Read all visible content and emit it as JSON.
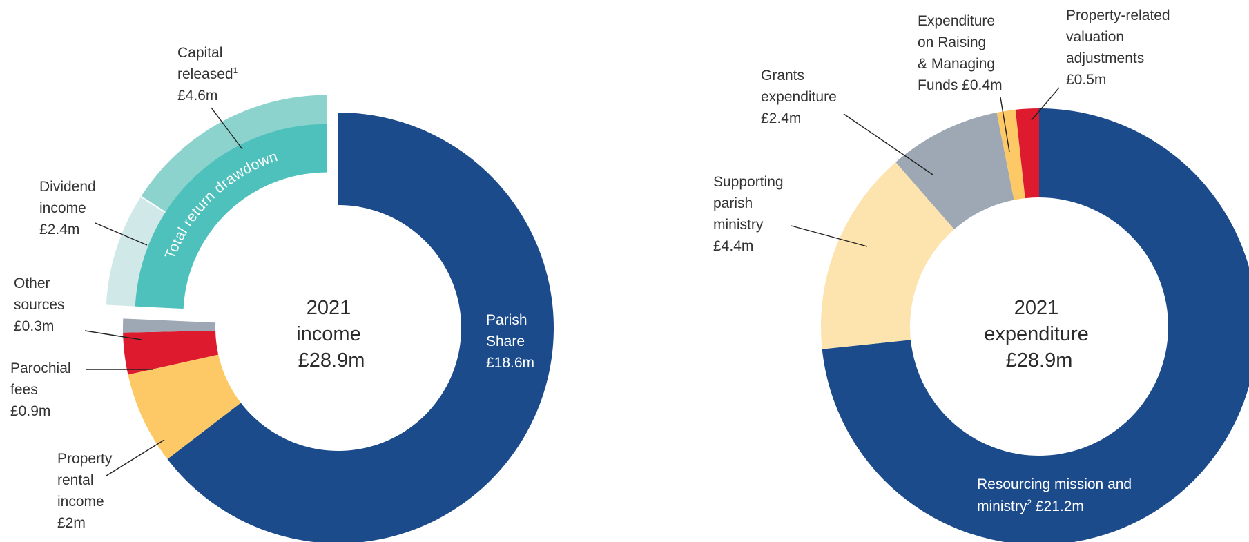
{
  "chart_data": [
    {
      "type": "pie",
      "title": "",
      "center_label": [
        "2021",
        "income",
        "£28.9m"
      ],
      "slices": [
        {
          "name": "Parish Share",
          "label": [
            "Parish",
            "Share",
            "£18.6m"
          ],
          "value": 18.6,
          "color": "#1c4b8c"
        },
        {
          "name": "Property rental income",
          "label": [
            "Property",
            "rental",
            "income",
            "£2m"
          ],
          "value": 2.0,
          "color": "#fdc966"
        },
        {
          "name": "Parochial fees",
          "label": [
            "Parochial",
            "fees",
            "£0.9m"
          ],
          "value": 0.9,
          "color": "#de1a2e"
        },
        {
          "name": "Other sources",
          "label": [
            "Other",
            "sources",
            "£0.3m"
          ],
          "value": 0.3,
          "color": "#9ea7b4"
        },
        {
          "name": "Dividend income",
          "label": [
            "Dividend",
            "income",
            "£2.4m"
          ],
          "value": 2.4,
          "color": "#d0e8e8"
        },
        {
          "name": "Capital released",
          "label": [
            "Capital",
            "released",
            "£4.6m"
          ],
          "footnote": "1",
          "value": 4.6,
          "color": "#8dd3cd"
        }
      ],
      "group_label": {
        "text": "Total return drawdown",
        "color": "#4fc1bc"
      }
    },
    {
      "type": "pie",
      "title": "",
      "center_label": [
        "2021",
        "expenditure",
        "£28.9m"
      ],
      "slices": [
        {
          "name": "Resourcing mission and ministry",
          "label": [
            "Resourcing mission and",
            "ministry £21.2m"
          ],
          "footnote": "2",
          "value": 21.2,
          "color": "#1c4b8c"
        },
        {
          "name": "Supporting parish ministry",
          "label": [
            "Supporting",
            "parish",
            "ministry",
            "£4.4m"
          ],
          "value": 4.4,
          "color": "#fde3ad"
        },
        {
          "name": "Grants expenditure",
          "label": [
            "Grants",
            "expenditure",
            "£2.4m"
          ],
          "value": 2.4,
          "color": "#9ea7b4"
        },
        {
          "name": "Expenditure on Raising & Managing Funds",
          "label": [
            "Expenditure",
            "on Raising",
            "& Managing",
            "Funds £0.4m"
          ],
          "value": 0.4,
          "color": "#fdc966"
        },
        {
          "name": "Property-related valuation adjustments",
          "label": [
            "Property-related",
            "valuation",
            "adjustments",
            "£0.5m"
          ],
          "value": 0.5,
          "color": "#de1a2e"
        }
      ]
    }
  ]
}
